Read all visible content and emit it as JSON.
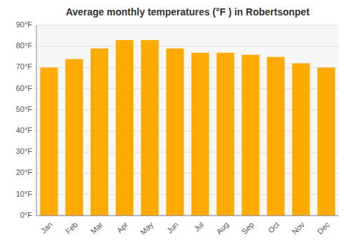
{
  "chart_data": {
    "type": "bar",
    "title": "Average monthly temperatures (°F ) in Robertsonpet",
    "categories": [
      "Jan",
      "Feb",
      "Mar",
      "Apr",
      "May",
      "Jun",
      "Jul",
      "Aug",
      "Sep",
      "Oct",
      "Nov",
      "Dec"
    ],
    "values": [
      70,
      74,
      79,
      83,
      83,
      79,
      77,
      77,
      76,
      75,
      72,
      70
    ],
    "color": "#FFAA00",
    "ylim": [
      0,
      90
    ],
    "yticks": [
      {
        "value": 0,
        "label": "0°F"
      },
      {
        "value": 10,
        "label": "10°F"
      },
      {
        "value": 20,
        "label": "20°F"
      },
      {
        "value": 30,
        "label": "30°F"
      },
      {
        "value": 40,
        "label": "40°F"
      },
      {
        "value": 50,
        "label": "50°F"
      },
      {
        "value": 60,
        "label": "60°F"
      },
      {
        "value": 70,
        "label": "70°F"
      },
      {
        "value": 80,
        "label": "80°F"
      },
      {
        "value": 90,
        "label": "90°F"
      }
    ],
    "grid": true
  }
}
